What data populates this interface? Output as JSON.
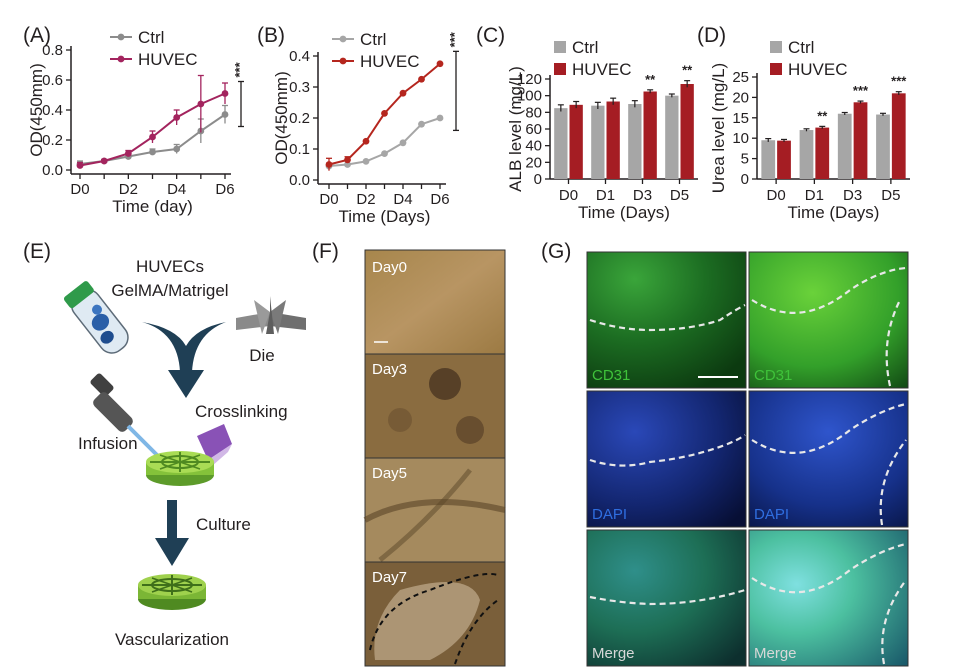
{
  "figure": {
    "panel_labels": [
      "(A)",
      "(B)",
      "(C)",
      "(D)",
      "(E)",
      "(F)",
      "(G)"
    ]
  },
  "colors": {
    "ctrl_A": "#8c8c8c",
    "huvec_A": "#a3245e",
    "ctrl_B": "#a6a6a6",
    "huvec_B": "#b5261e",
    "bar_ctrl": "#a6a6a6",
    "bar_huvec": "#a51d23",
    "cd31": "#3fc23a",
    "dapi": "#2a52c9"
  },
  "chart_data": [
    {
      "panel": "(A)",
      "type": "line",
      "xlabel": "Time (day)",
      "ylabel": "OD(450mm)",
      "tick_labels_x": [
        "D0",
        "D2",
        "D4",
        "D6"
      ],
      "x": [
        0,
        1,
        2,
        3,
        4,
        5,
        6
      ],
      "yticks": [
        "0.0",
        "0.2",
        "0.4",
        "0.6",
        "0.8"
      ],
      "ylim": [
        0,
        0.8
      ],
      "series": [
        {
          "name": "Ctrl",
          "values": [
            0.04,
            0.06,
            0.09,
            0.12,
            0.14,
            0.26,
            0.37
          ],
          "err": [
            0.02,
            0.01,
            0.02,
            0.02,
            0.03,
            0.08,
            0.06
          ]
        },
        {
          "name": "HUVEC",
          "values": [
            0.03,
            0.06,
            0.11,
            0.22,
            0.35,
            0.44,
            0.51
          ],
          "err": [
            0.02,
            0.01,
            0.02,
            0.04,
            0.05,
            0.19,
            0.07
          ]
        }
      ],
      "significance": "***",
      "legend": "top-left"
    },
    {
      "panel": "(B)",
      "type": "line",
      "xlabel": "Time (Days)",
      "ylabel": "OD(450mm)",
      "tick_labels_x": [
        "D0",
        "D2",
        "D4",
        "D6"
      ],
      "x": [
        0,
        1,
        2,
        3,
        4,
        5,
        6
      ],
      "yticks": [
        "0.0",
        "0.1",
        "0.2",
        "0.3",
        "0.4"
      ],
      "ylim": [
        0,
        0.4
      ],
      "series": [
        {
          "name": "Ctrl",
          "values": [
            0.045,
            0.05,
            0.06,
            0.085,
            0.12,
            0.18,
            0.2
          ]
        },
        {
          "name": "HUVEC",
          "values": [
            0.05,
            0.065,
            0.125,
            0.215,
            0.28,
            0.325,
            0.375
          ],
          "err": [
            0.02,
            0.01,
            0,
            0,
            0,
            0,
            0
          ]
        }
      ],
      "significance": "***",
      "legend": "top-left"
    },
    {
      "panel": "(C)",
      "type": "bar",
      "xlabel": "Time (Days)",
      "ylabel": "ALB level (mg/L)",
      "categories": [
        "D0",
        "D1",
        "D3",
        "D5"
      ],
      "yticks": [
        "0",
        "20",
        "40",
        "60",
        "80",
        "100",
        "120"
      ],
      "ylim": [
        0,
        120
      ],
      "series": [
        {
          "name": "Ctrl",
          "values": [
            85,
            88,
            90,
            100
          ],
          "err": [
            4,
            4,
            4,
            2
          ]
        },
        {
          "name": "HUVEC",
          "values": [
            89,
            93,
            105,
            114
          ],
          "err": [
            4,
            4,
            2,
            4
          ]
        }
      ],
      "significance": [
        "",
        "",
        "**",
        "**"
      ],
      "legend": "top-left"
    },
    {
      "panel": "(D)",
      "type": "bar",
      "xlabel": "Time (Days)",
      "ylabel": "Urea level (mg/L)",
      "categories": [
        "D0",
        "D1",
        "D3",
        "D5"
      ],
      "yticks": [
        "0",
        "5",
        "10",
        "15",
        "20",
        "25"
      ],
      "ylim": [
        0,
        25
      ],
      "series": [
        {
          "name": "Ctrl",
          "values": [
            9.5,
            12,
            16,
            15.8
          ],
          "err": [
            0.4,
            0.3,
            0.3,
            0.3
          ]
        },
        {
          "name": "HUVEC",
          "values": [
            9.4,
            12.6,
            18.8,
            21
          ],
          "err": [
            0.3,
            0.3,
            0.3,
            0.4
          ]
        }
      ],
      "significance": [
        "",
        "**",
        "***",
        "***"
      ],
      "legend": "top-left"
    }
  ],
  "schematic": {
    "title_line1": "HUVECs",
    "title_line2": "GelMA/Matrigel",
    "die": "Die",
    "crosslinking": "Crosslinking",
    "infusion": "Infusion",
    "culture": "Culture",
    "vascularization": "Vascularization"
  },
  "micrographs": {
    "labels": [
      "Day0",
      "Day3",
      "Day5",
      "Day7"
    ]
  },
  "fluorescence": {
    "rows": [
      "CD31",
      "DAPI",
      "Merge"
    ]
  }
}
